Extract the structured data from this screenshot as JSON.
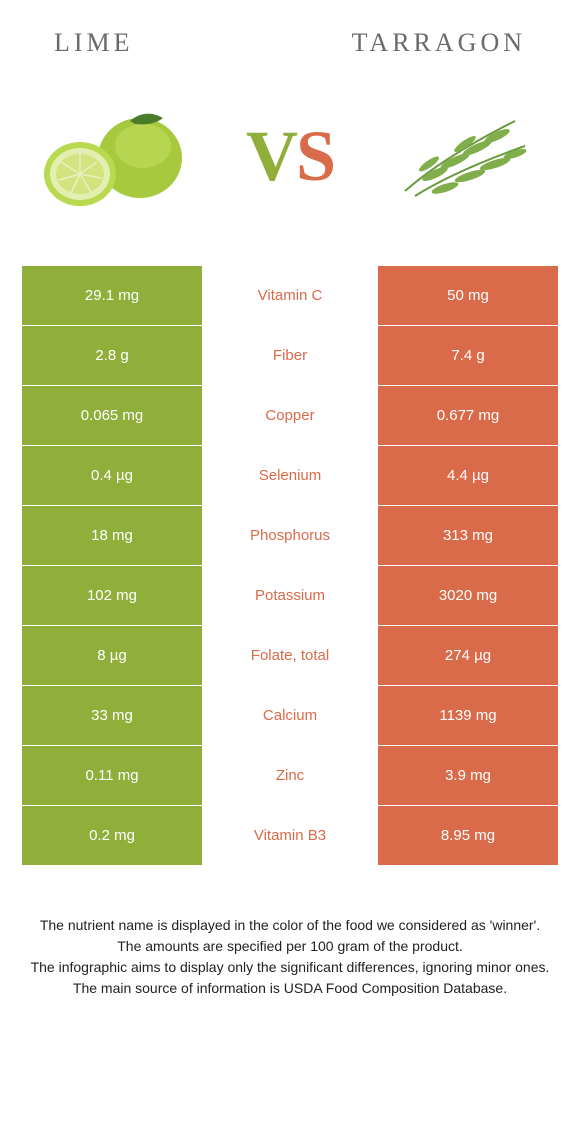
{
  "header": {
    "left_title": "LIME",
    "right_title": "TARRAGON"
  },
  "vs": {
    "v": "V",
    "s": "S"
  },
  "colors": {
    "left": "#8faf3a",
    "right": "#d96b4a",
    "mid_text_left": "#8faf3a",
    "mid_text_right": "#d96b4a"
  },
  "rows": [
    {
      "left": "29.1 mg",
      "mid": "Vitamin C",
      "right": "50 mg",
      "winner": "right"
    },
    {
      "left": "2.8 g",
      "mid": "Fiber",
      "right": "7.4 g",
      "winner": "right"
    },
    {
      "left": "0.065 mg",
      "mid": "Copper",
      "right": "0.677 mg",
      "winner": "right"
    },
    {
      "left": "0.4 µg",
      "mid": "Selenium",
      "right": "4.4 µg",
      "winner": "right"
    },
    {
      "left": "18 mg",
      "mid": "Phosphorus",
      "right": "313 mg",
      "winner": "right"
    },
    {
      "left": "102 mg",
      "mid": "Potassium",
      "right": "3020 mg",
      "winner": "right"
    },
    {
      "left": "8 µg",
      "mid": "Folate, total",
      "right": "274 µg",
      "winner": "right"
    },
    {
      "left": "33 mg",
      "mid": "Calcium",
      "right": "1139 mg",
      "winner": "right"
    },
    {
      "left": "0.11 mg",
      "mid": "Zinc",
      "right": "3.9 mg",
      "winner": "right"
    },
    {
      "left": "0.2 mg",
      "mid": "Vitamin B3",
      "right": "8.95 mg",
      "winner": "right"
    }
  ],
  "footer": {
    "l1": "The nutrient name is displayed in the color of the food we considered as 'winner'.",
    "l2": "The amounts are specified per 100 gram of the product.",
    "l3": "The infographic aims to display only the significant differences, ignoring minor ones.",
    "l4": "The main source of information is USDA Food Composition Database."
  }
}
